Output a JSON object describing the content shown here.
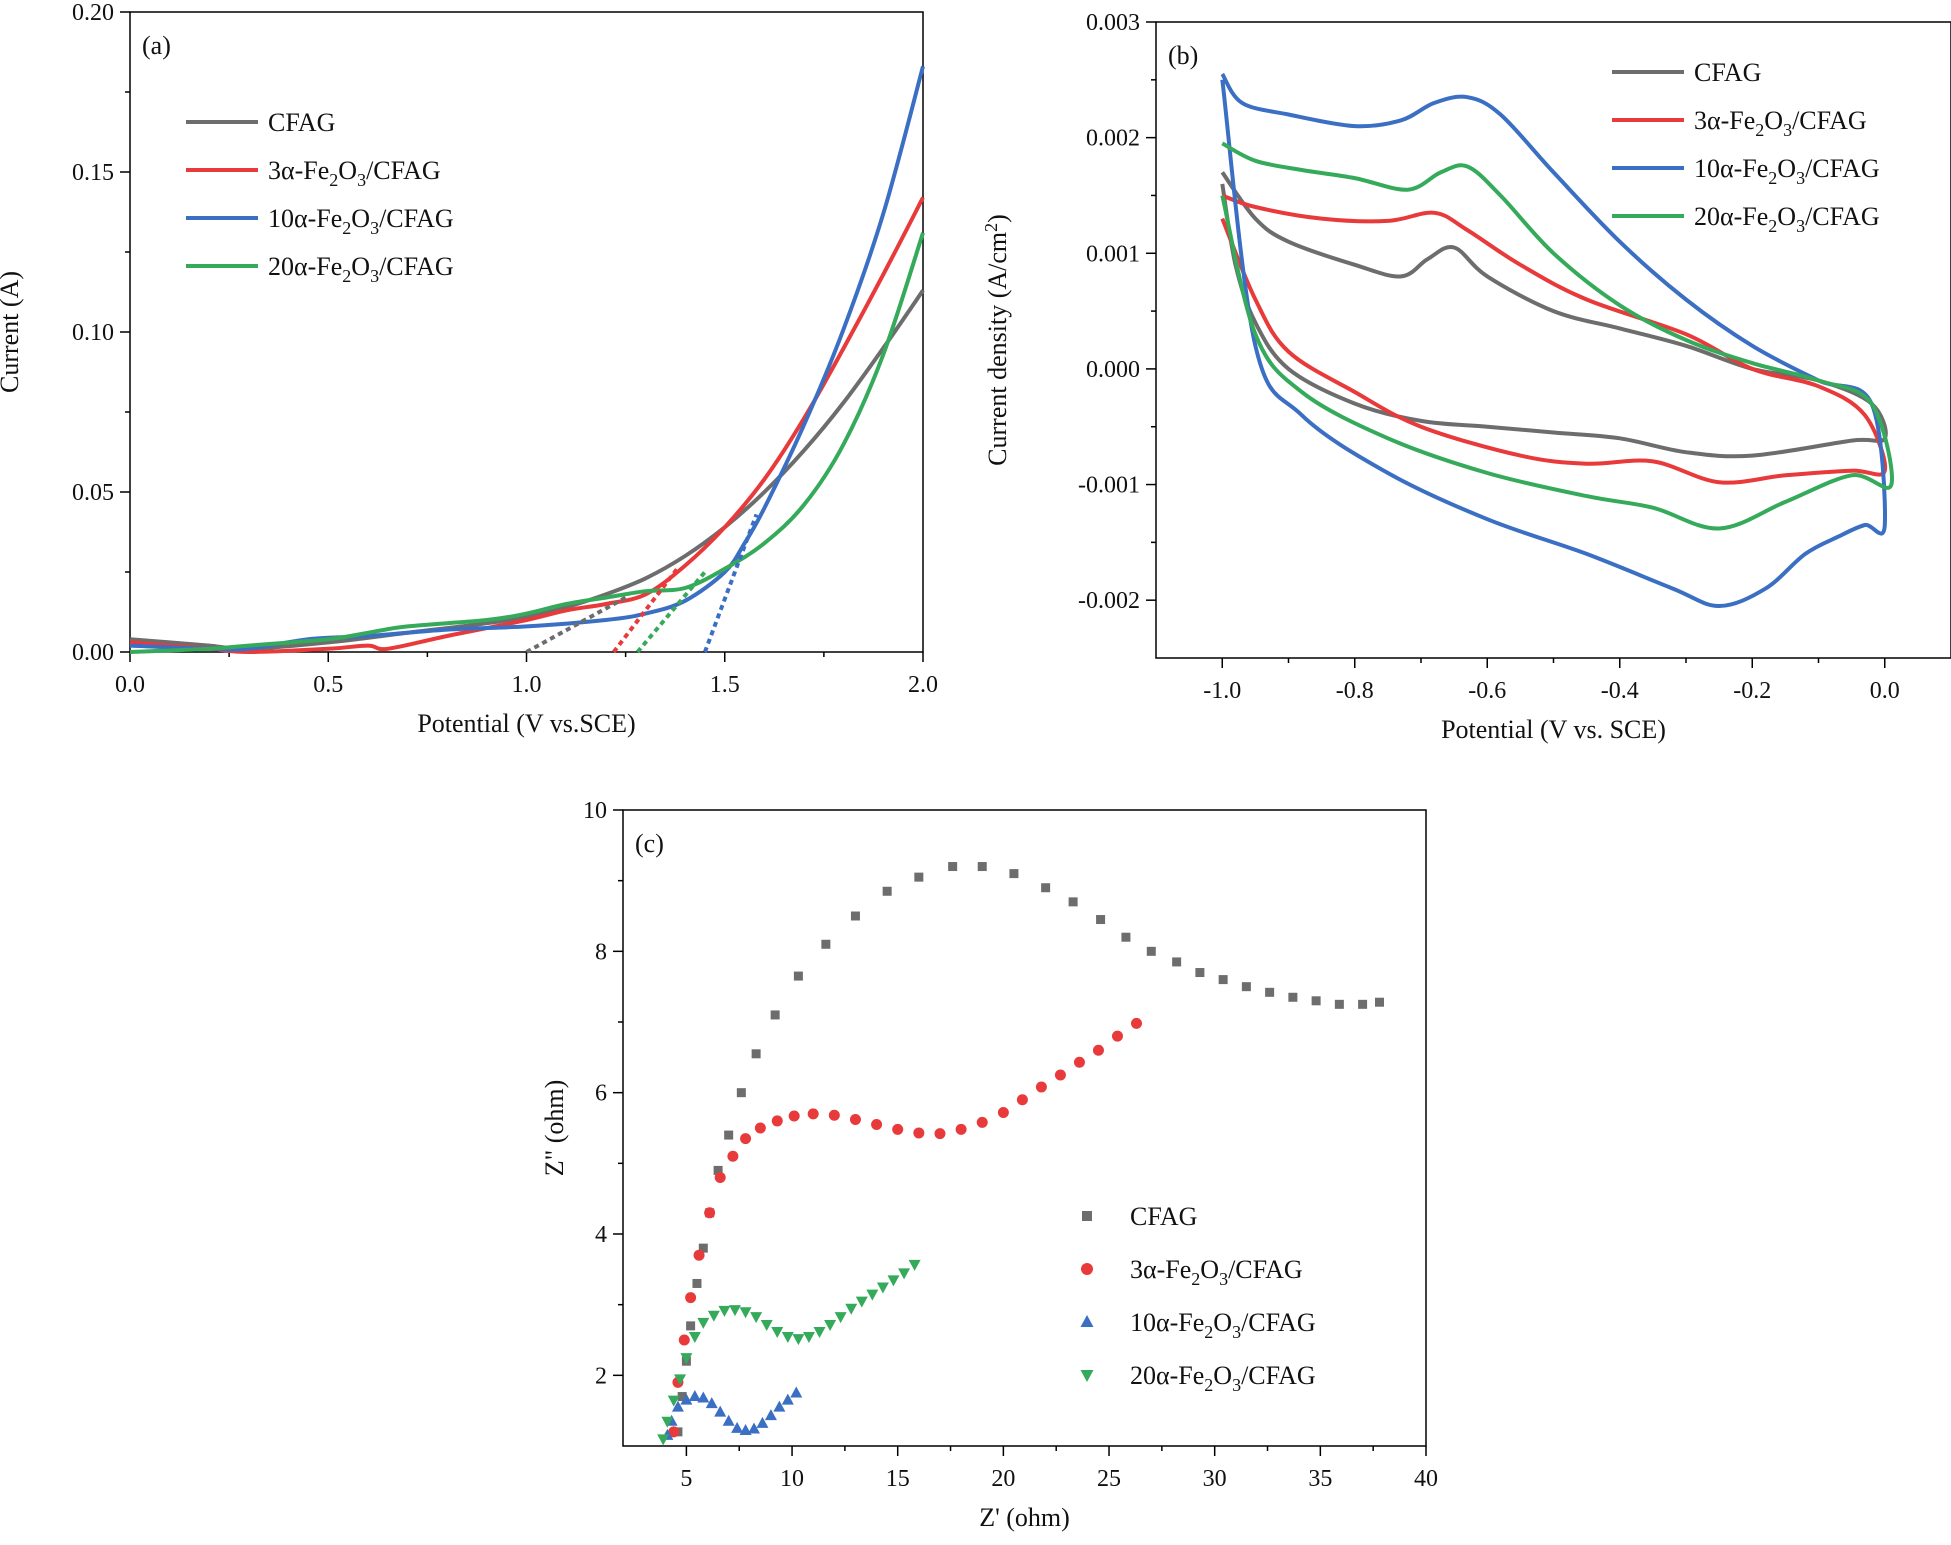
{
  "colors": {
    "CFAG": "#6d6d6d",
    "3a": "#e83a3a",
    "10a": "#3b6fc4",
    "20a": "#35aa5a"
  },
  "chart_data": [
    {
      "id": "a",
      "type": "line",
      "panel_label": "(a)",
      "xlabel": "Potential (V vs.SCE)",
      "ylabel": "Current (A)",
      "xlim": [
        0,
        2.0
      ],
      "ylim": [
        0,
        0.2
      ],
      "xticks": [
        "0.0",
        "0.5",
        "1.0",
        "1.5",
        "2.0"
      ],
      "xtick_values": [
        0,
        0.5,
        1.0,
        1.5,
        2.0
      ],
      "yticks": [
        "0.00",
        "0.05",
        "0.10",
        "0.15",
        "0.20"
      ],
      "ytick_values": [
        0,
        0.05,
        0.1,
        0.15,
        0.2
      ],
      "legend": [
        {
          "key": "CFAG",
          "main": "CFAG",
          "pre": "",
          "sub1": "",
          "mid": "",
          "sub2": "",
          "post": ""
        },
        {
          "key": "3a",
          "main": "",
          "pre": "3α-Fe",
          "sub1": "2",
          "mid": "O",
          "sub2": "3",
          "post": "/CFAG"
        },
        {
          "key": "10a",
          "main": "",
          "pre": "10α-Fe",
          "sub1": "2",
          "mid": "O",
          "sub2": "3",
          "post": "/CFAG"
        },
        {
          "key": "20a",
          "main": "",
          "pre": "20α-Fe",
          "sub1": "2",
          "mid": "O",
          "sub2": "3",
          "post": "/CFAG"
        }
      ],
      "series": [
        {
          "key": "CFAG",
          "x": [
            0,
            0.1,
            0.2,
            0.3,
            0.5,
            0.7,
            0.9,
            1.0,
            1.1,
            1.2,
            1.3,
            1.4,
            1.5,
            1.6,
            1.7,
            1.8,
            1.9,
            2.0
          ],
          "y": [
            0.004,
            0.003,
            0.002,
            0.001,
            0.003,
            0.006,
            0.009,
            0.011,
            0.014,
            0.018,
            0.023,
            0.03,
            0.039,
            0.05,
            0.063,
            0.078,
            0.095,
            0.113
          ]
        },
        {
          "key": "3a",
          "x": [
            0,
            0.2,
            0.3,
            0.5,
            0.6,
            0.65,
            0.8,
            1.0,
            1.1,
            1.2,
            1.3,
            1.4,
            1.5,
            1.6,
            1.7,
            1.8,
            1.9,
            2.0
          ],
          "y": [
            0.003,
            0.001,
            0.0,
            0.001,
            0.002,
            0.001,
            0.005,
            0.01,
            0.013,
            0.015,
            0.018,
            0.027,
            0.039,
            0.054,
            0.073,
            0.095,
            0.118,
            0.142
          ]
        },
        {
          "key": "10a",
          "x": [
            0,
            0.2,
            0.3,
            0.45,
            0.6,
            0.8,
            1.0,
            1.2,
            1.3,
            1.4,
            1.5,
            1.55,
            1.6,
            1.7,
            1.8,
            1.9,
            2.0
          ],
          "y": [
            0.002,
            0.001,
            0.001,
            0.004,
            0.005,
            0.007,
            0.008,
            0.01,
            0.012,
            0.016,
            0.025,
            0.034,
            0.045,
            0.071,
            0.101,
            0.137,
            0.183
          ]
        },
        {
          "key": "20a",
          "x": [
            0,
            0.2,
            0.3,
            0.5,
            0.6,
            0.7,
            0.9,
            1.0,
            1.1,
            1.2,
            1.3,
            1.4,
            1.5,
            1.6,
            1.7,
            1.8,
            1.9,
            2.0
          ],
          "y": [
            0.0,
            0.001,
            0.002,
            0.004,
            0.006,
            0.008,
            0.01,
            0.012,
            0.015,
            0.017,
            0.019,
            0.02,
            0.026,
            0.034,
            0.046,
            0.065,
            0.093,
            0.131
          ]
        }
      ],
      "tangents": [
        {
          "key": "CFAG",
          "x": [
            1.0,
            1.25
          ],
          "y": [
            0.0,
            0.017
          ]
        },
        {
          "key": "3a",
          "x": [
            1.22,
            1.38
          ],
          "y": [
            0.0,
            0.026
          ]
        },
        {
          "key": "10a",
          "x": [
            1.45,
            1.58
          ],
          "y": [
            0.0,
            0.043
          ]
        },
        {
          "key": "20a",
          "x": [
            1.28,
            1.45
          ],
          "y": [
            0.0,
            0.025
          ]
        }
      ]
    },
    {
      "id": "b",
      "type": "line",
      "panel_label": "(b)",
      "xlabel": "Potential (V vs. SCE)",
      "ylabel_pre": "Current density (A/cm",
      "ylabel_sup": "2",
      "ylabel_post": ")",
      "xlim": [
        -1.1,
        0.1
      ],
      "ylim": [
        -0.0025,
        0.003
      ],
      "xticks": [
        "-1.0",
        "-0.8",
        "-0.6",
        "-0.4",
        "-0.2",
        "0.0"
      ],
      "xtick_values": [
        -1.0,
        -0.8,
        -0.6,
        -0.4,
        -0.2,
        0.0
      ],
      "yticks": [
        "-0.002",
        "-0.001",
        "0.000",
        "0.001",
        "0.002",
        "0.003"
      ],
      "ytick_values": [
        -0.002,
        -0.001,
        0.0,
        0.001,
        0.002,
        0.003
      ],
      "legend": [
        {
          "key": "CFAG",
          "main": "CFAG",
          "pre": "",
          "sub1": "",
          "mid": "",
          "sub2": "",
          "post": ""
        },
        {
          "key": "3a",
          "main": "",
          "pre": "3α-Fe",
          "sub1": "2",
          "mid": "O",
          "sub2": "3",
          "post": "/CFAG"
        },
        {
          "key": "10a",
          "main": "",
          "pre": "10α-Fe",
          "sub1": "2",
          "mid": "O",
          "sub2": "3",
          "post": "/CFAG"
        },
        {
          "key": "20a",
          "main": "",
          "pre": "20α-Fe",
          "sub1": "2",
          "mid": "O",
          "sub2": "3",
          "post": "/CFAG"
        }
      ],
      "series": [
        {
          "key": "CFAG",
          "x": [
            -1.0,
            -0.95,
            -0.9,
            -0.8,
            -0.73,
            -0.69,
            -0.65,
            -0.6,
            -0.5,
            -0.4,
            -0.3,
            -0.2,
            -0.1,
            -0.02,
            0.0,
            -0.05,
            -0.2,
            -0.3,
            -0.4,
            -0.5,
            -0.6,
            -0.7,
            -0.8,
            -0.9,
            -0.95,
            -0.98,
            -1.0
          ],
          "y": [
            0.0017,
            0.0013,
            0.0011,
            0.0009,
            0.0008,
            0.00095,
            0.00105,
            0.0008,
            0.0005,
            0.00035,
            0.0002,
            0.0,
            -0.0001,
            -0.0003,
            -0.0006,
            -0.00062,
            -0.00075,
            -0.00072,
            -0.0006,
            -0.00055,
            -0.0005,
            -0.00045,
            -0.0003,
            0.0,
            0.0004,
            0.0009,
            0.0016
          ]
        },
        {
          "key": "3a",
          "x": [
            -1.0,
            -0.95,
            -0.85,
            -0.75,
            -0.68,
            -0.63,
            -0.55,
            -0.45,
            -0.3,
            -0.2,
            -0.1,
            -0.03,
            0.0,
            -0.05,
            -0.15,
            -0.25,
            -0.35,
            -0.45,
            -0.55,
            -0.7,
            -0.8,
            -0.9,
            -0.95,
            -1.0
          ],
          "y": [
            0.0015,
            0.0014,
            0.0013,
            0.00128,
            0.00135,
            0.0012,
            0.0009,
            0.0006,
            0.0003,
            0.0,
            -0.00015,
            -0.0004,
            -0.00088,
            -0.00088,
            -0.00092,
            -0.00098,
            -0.0008,
            -0.00082,
            -0.00075,
            -0.0005,
            -0.0002,
            0.00015,
            0.0006,
            0.0013
          ]
        },
        {
          "key": "10a",
          "x": [
            -1.0,
            -0.97,
            -0.9,
            -0.8,
            -0.73,
            -0.68,
            -0.63,
            -0.58,
            -0.5,
            -0.4,
            -0.3,
            -0.2,
            -0.1,
            -0.02,
            0.0,
            -0.03,
            -0.07,
            -0.12,
            -0.18,
            -0.25,
            -0.32,
            -0.45,
            -0.6,
            -0.75,
            -0.88,
            -0.95,
            -1.0
          ],
          "y": [
            0.00255,
            0.0023,
            0.0022,
            0.0021,
            0.00215,
            0.0023,
            0.00235,
            0.0022,
            0.0017,
            0.0011,
            0.0006,
            0.0002,
            -0.0001,
            -0.0003,
            -0.00135,
            -0.00135,
            -0.00145,
            -0.0016,
            -0.0019,
            -0.00205,
            -0.0019,
            -0.0016,
            -0.0013,
            -0.0009,
            -0.0004,
            0.0002,
            0.0025
          ]
        },
        {
          "key": "20a",
          "x": [
            -1.0,
            -0.95,
            -0.88,
            -0.8,
            -0.72,
            -0.67,
            -0.63,
            -0.58,
            -0.5,
            -0.4,
            -0.3,
            -0.2,
            -0.1,
            -0.02,
            0.01,
            -0.05,
            -0.15,
            -0.25,
            -0.35,
            -0.45,
            -0.6,
            -0.75,
            -0.88,
            -0.95,
            -1.0
          ],
          "y": [
            0.00195,
            0.0018,
            0.00172,
            0.00165,
            0.00155,
            0.0017,
            0.00175,
            0.0015,
            0.001,
            0.00055,
            0.00025,
            5e-05,
            -0.0001,
            -0.0003,
            -0.001,
            -0.00092,
            -0.00115,
            -0.00138,
            -0.0012,
            -0.0011,
            -0.0009,
            -0.0006,
            -0.0002,
            0.0003,
            0.0015
          ]
        }
      ]
    },
    {
      "id": "c",
      "type": "scatter",
      "panel_label": "(c)",
      "xlabel": "Z' (ohm)",
      "ylabel": "Z\" (ohm)",
      "xlim": [
        2,
        40
      ],
      "ylim": [
        1,
        10
      ],
      "xticks": [
        "5",
        "10",
        "15",
        "20",
        "25",
        "30",
        "35",
        "40"
      ],
      "xtick_values": [
        5,
        10,
        15,
        20,
        25,
        30,
        35,
        40
      ],
      "yticks": [
        "2",
        "4",
        "6",
        "8",
        "10"
      ],
      "ytick_values": [
        2,
        4,
        6,
        8,
        10
      ],
      "legend": [
        {
          "key": "CFAG",
          "marker": "square",
          "main": "CFAG",
          "pre": "",
          "sub1": "",
          "mid": "",
          "sub2": "",
          "post": ""
        },
        {
          "key": "3a",
          "marker": "circle",
          "main": "",
          "pre": "3α-Fe",
          "sub1": "2",
          "mid": "O",
          "sub2": "3",
          "post": "/CFAG"
        },
        {
          "key": "10a",
          "marker": "triangle-up",
          "main": "",
          "pre": "10α-Fe",
          "sub1": "2",
          "mid": "O",
          "sub2": "3",
          "post": "/CFAG"
        },
        {
          "key": "20a",
          "marker": "triangle-down",
          "main": "",
          "pre": "20α-Fe",
          "sub1": "2",
          "mid": "O",
          "sub2": "3",
          "post": "/CFAG"
        }
      ],
      "series": [
        {
          "key": "CFAG",
          "marker": "square",
          "x": [
            4.6,
            4.8,
            5.0,
            5.2,
            5.5,
            5.8,
            6.1,
            6.5,
            7.0,
            7.6,
            8.3,
            9.2,
            10.3,
            11.6,
            13.0,
            14.5,
            16.0,
            17.6,
            19.0,
            20.5,
            22.0,
            23.3,
            24.6,
            25.8,
            27.0,
            28.2,
            29.3,
            30.4,
            31.5,
            32.6,
            33.7,
            34.8,
            35.9,
            37.0,
            37.8
          ],
          "y": [
            1.2,
            1.7,
            2.2,
            2.7,
            3.3,
            3.8,
            4.3,
            4.9,
            5.4,
            6.0,
            6.55,
            7.1,
            7.65,
            8.1,
            8.5,
            8.85,
            9.05,
            9.2,
            9.2,
            9.1,
            8.9,
            8.7,
            8.45,
            8.2,
            8.0,
            7.85,
            7.7,
            7.6,
            7.5,
            7.42,
            7.35,
            7.3,
            7.25,
            7.25,
            7.28
          ]
        },
        {
          "key": "3a",
          "marker": "circle",
          "x": [
            4.4,
            4.6,
            4.9,
            5.2,
            5.6,
            6.1,
            6.6,
            7.2,
            7.8,
            8.5,
            9.3,
            10.1,
            11.0,
            12.0,
            13.0,
            14.0,
            15.0,
            16.0,
            17.0,
            18.0,
            19.0,
            20.0,
            20.9,
            21.8,
            22.7,
            23.6,
            24.5,
            25.4,
            26.3
          ],
          "y": [
            1.2,
            1.9,
            2.5,
            3.1,
            3.7,
            4.3,
            4.8,
            5.1,
            5.35,
            5.5,
            5.6,
            5.67,
            5.7,
            5.68,
            5.62,
            5.55,
            5.48,
            5.43,
            5.42,
            5.48,
            5.58,
            5.72,
            5.9,
            6.08,
            6.25,
            6.43,
            6.6,
            6.8,
            6.98
          ]
        },
        {
          "key": "10a",
          "marker": "triangle-up",
          "x": [
            4.1,
            4.3,
            4.6,
            5.0,
            5.4,
            5.8,
            6.2,
            6.6,
            7.0,
            7.4,
            7.8,
            8.2,
            8.6,
            9.0,
            9.4,
            9.8,
            10.2
          ],
          "y": [
            1.15,
            1.35,
            1.55,
            1.65,
            1.7,
            1.68,
            1.6,
            1.48,
            1.35,
            1.25,
            1.22,
            1.24,
            1.32,
            1.43,
            1.55,
            1.65,
            1.75
          ]
        },
        {
          "key": "20a",
          "marker": "triangle-down",
          "x": [
            3.9,
            4.1,
            4.4,
            4.7,
            5.0,
            5.4,
            5.8,
            6.3,
            6.8,
            7.3,
            7.8,
            8.3,
            8.8,
            9.3,
            9.8,
            10.3,
            10.8,
            11.3,
            11.8,
            12.3,
            12.8,
            13.3,
            13.8,
            14.3,
            14.8,
            15.3,
            15.8
          ],
          "y": [
            1.1,
            1.35,
            1.65,
            1.95,
            2.25,
            2.55,
            2.75,
            2.85,
            2.92,
            2.93,
            2.9,
            2.83,
            2.72,
            2.62,
            2.55,
            2.52,
            2.55,
            2.62,
            2.72,
            2.83,
            2.95,
            3.05,
            3.15,
            3.25,
            3.35,
            3.45,
            3.57
          ]
        }
      ]
    }
  ]
}
